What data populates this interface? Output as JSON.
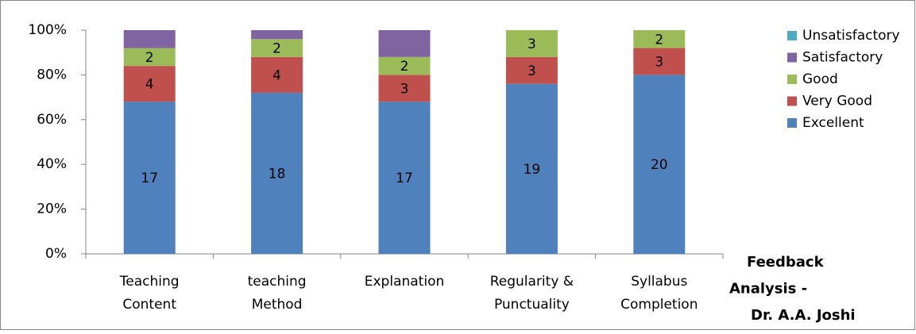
{
  "chart_data": {
    "type": "bar",
    "stacking": "percent",
    "categories": [
      "Teaching\nContent",
      "teaching\nMethod",
      "Explanation",
      "Regularity &\nPunctuality",
      "Syllabus\nCompletion"
    ],
    "series": [
      {
        "name": "Excellent",
        "color": "#4f81bd",
        "values": [
          17,
          18,
          17,
          19,
          20
        ],
        "show_labels": true
      },
      {
        "name": "Very Good",
        "color": "#c0504d",
        "values": [
          4,
          4,
          3,
          3,
          3
        ],
        "show_labels": true
      },
      {
        "name": "Good",
        "color": "#9bbb59",
        "values": [
          2,
          2,
          2,
          3,
          2
        ],
        "show_labels": true
      },
      {
        "name": "Satisfactory",
        "color": "#8064a2",
        "values": [
          2,
          1,
          3,
          0,
          0
        ],
        "show_labels": false
      },
      {
        "name": "Unsatisfactory",
        "color": "#4bacc6",
        "values": [
          0,
          0,
          0,
          0,
          0
        ],
        "show_labels": false
      }
    ],
    "ylim": [
      0,
      100
    ],
    "yticks": [
      {
        "value": 0,
        "label": "0%"
      },
      {
        "value": 20,
        "label": "20%"
      },
      {
        "value": 40,
        "label": "40%"
      },
      {
        "value": 60,
        "label": "60%"
      },
      {
        "value": 80,
        "label": "80%"
      },
      {
        "value": 100,
        "label": "100%"
      }
    ],
    "legend": "right",
    "annotation": "Feedback\nAnalysis -\nDr. A.A. Joshi"
  }
}
